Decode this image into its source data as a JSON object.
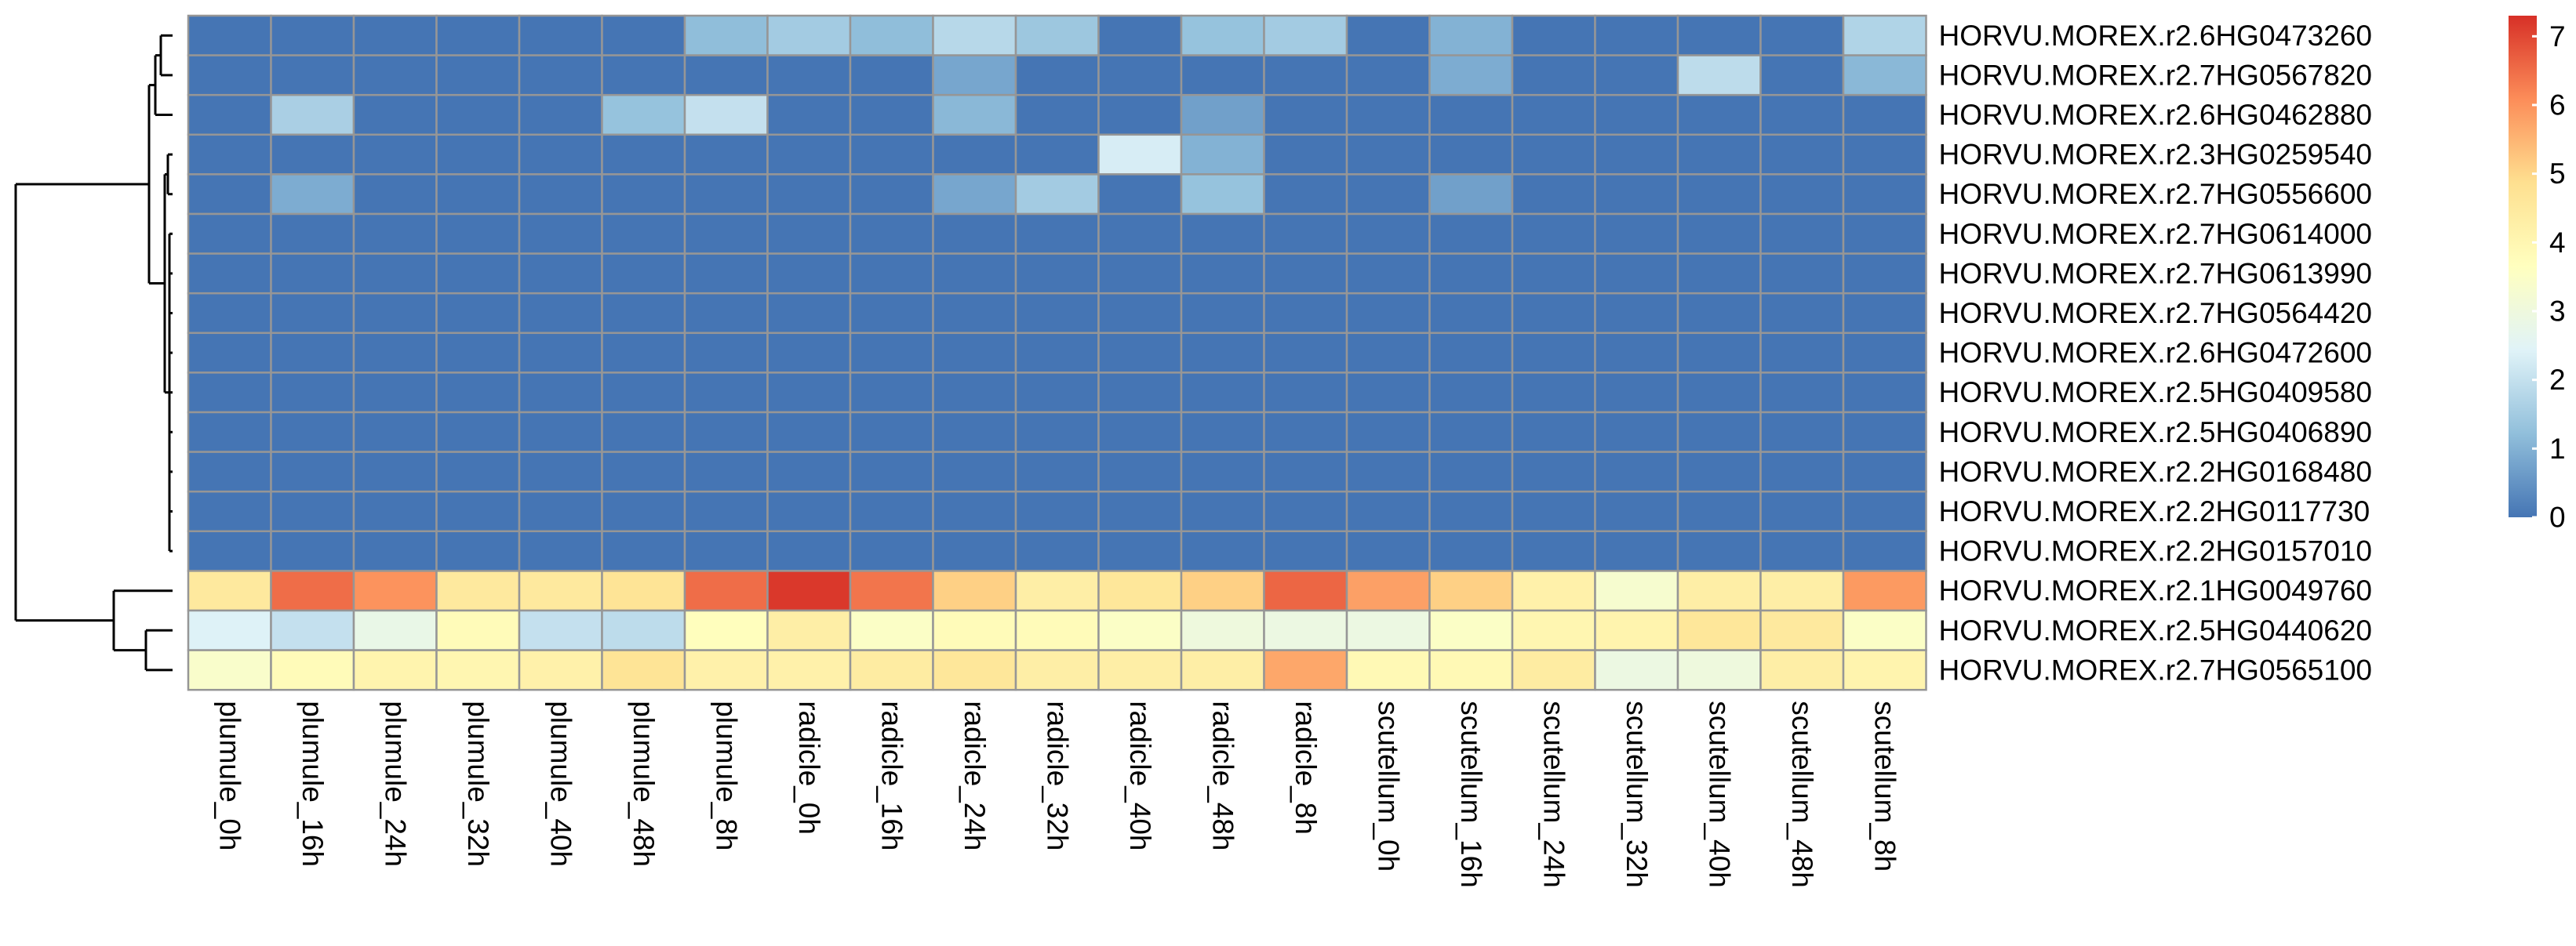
{
  "chart_data": {
    "type": "heatmap",
    "title": "",
    "xlabel": "",
    "ylabel": "",
    "columns": [
      "plumule_0h",
      "plumule_16h",
      "plumule_24h",
      "plumule_32h",
      "plumule_40h",
      "plumule_48h",
      "plumule_8h",
      "radicle_0h",
      "radicle_16h",
      "radicle_24h",
      "radicle_32h",
      "radicle_40h",
      "radicle_48h",
      "radicle_8h",
      "scutellum_0h",
      "scutellum_16h",
      "scutellum_24h",
      "scutellum_32h",
      "scutellum_40h",
      "scutellum_48h",
      "scutellum_8h"
    ],
    "rows": [
      "HORVU.MOREX.r2.6HG0473260",
      "HORVU.MOREX.r2.7HG0567820",
      "HORVU.MOREX.r2.6HG0462880",
      "HORVU.MOREX.r2.3HG0259540",
      "HORVU.MOREX.r2.7HG0556600",
      "HORVU.MOREX.r2.7HG0614000",
      "HORVU.MOREX.r2.7HG0613990",
      "HORVU.MOREX.r2.7HG0564420",
      "HORVU.MOREX.r2.6HG0472600",
      "HORVU.MOREX.r2.5HG0409580",
      "HORVU.MOREX.r2.5HG0406890",
      "HORVU.MOREX.r2.2HG0168480",
      "HORVU.MOREX.r2.2HG0117730",
      "HORVU.MOREX.r2.2HG0157010",
      "HORVU.MOREX.r2.1HG0049760",
      "HORVU.MOREX.r2.5HG0440620",
      "HORVU.MOREX.r2.7HG0565100"
    ],
    "values": [
      [
        0,
        0,
        0,
        0,
        0,
        0,
        1.2,
        1.5,
        1.2,
        1.8,
        1.4,
        0,
        1.3,
        1.5,
        0,
        1.0,
        0,
        0,
        0,
        0,
        1.7
      ],
      [
        0,
        0,
        0,
        0,
        0,
        0,
        0,
        0,
        0,
        0.8,
        0,
        0,
        0,
        0,
        0,
        0.9,
        0,
        0,
        1.9,
        0,
        1.1
      ],
      [
        0,
        1.6,
        0,
        0,
        0,
        1.3,
        2.0,
        0,
        0,
        1.1,
        0,
        0,
        0.7,
        0,
        0,
        0,
        0,
        0,
        0,
        0,
        0
      ],
      [
        0,
        0,
        0,
        0,
        0,
        0,
        0,
        0,
        0,
        0,
        0,
        2.3,
        1.0,
        0,
        0,
        0,
        0,
        0,
        0,
        0,
        0
      ],
      [
        0,
        0.9,
        0,
        0,
        0,
        0,
        0,
        0,
        0,
        0.8,
        1.5,
        0,
        1.3,
        0,
        0,
        0.7,
        0,
        0,
        0,
        0,
        0
      ],
      [
        0,
        0,
        0,
        0,
        0,
        0,
        0,
        0,
        0,
        0,
        0,
        0,
        0,
        0,
        0,
        0,
        0,
        0,
        0,
        0,
        0
      ],
      [
        0,
        0,
        0,
        0,
        0,
        0,
        0,
        0,
        0,
        0,
        0,
        0,
        0,
        0,
        0,
        0,
        0,
        0,
        0,
        0,
        0
      ],
      [
        0,
        0,
        0,
        0,
        0,
        0,
        0,
        0,
        0,
        0,
        0,
        0,
        0,
        0,
        0,
        0,
        0,
        0,
        0,
        0,
        0
      ],
      [
        0,
        0,
        0,
        0,
        0,
        0,
        0,
        0,
        0,
        0,
        0,
        0,
        0,
        0,
        0,
        0,
        0,
        0,
        0,
        0,
        0
      ],
      [
        0,
        0,
        0,
        0,
        0,
        0,
        0,
        0,
        0,
        0,
        0,
        0,
        0,
        0,
        0,
        0,
        0,
        0,
        0,
        0,
        0
      ],
      [
        0,
        0,
        0,
        0,
        0,
        0,
        0,
        0,
        0,
        0,
        0,
        0,
        0,
        0,
        0,
        0,
        0,
        0,
        0,
        0,
        0
      ],
      [
        0,
        0,
        0,
        0,
        0,
        0,
        0,
        0,
        0,
        0,
        0,
        0,
        0,
        0,
        0,
        0,
        0,
        0,
        0,
        0,
        0
      ],
      [
        0,
        0,
        0,
        0,
        0,
        0,
        0,
        0,
        0,
        0,
        0,
        0,
        0,
        0,
        0,
        0,
        0,
        0,
        0,
        0,
        0
      ],
      [
        0,
        0,
        0,
        0,
        0,
        0,
        0,
        0,
        0,
        0,
        0,
        0,
        0,
        0,
        0,
        0,
        0,
        0,
        0,
        0,
        0
      ],
      [
        4.5,
        6.5,
        6.0,
        4.5,
        4.5,
        4.7,
        6.5,
        7.2,
        6.4,
        5.1,
        4.3,
        4.6,
        5.1,
        6.6,
        5.8,
        5.1,
        4.2,
        3.3,
        4.3,
        4.3,
        5.9
      ],
      [
        2.4,
        2.0,
        2.8,
        3.8,
        2.0,
        1.9,
        3.7,
        4.3,
        3.5,
        3.8,
        3.8,
        3.5,
        3.0,
        2.9,
        2.9,
        3.5,
        4.0,
        4.1,
        4.6,
        4.5,
        3.5
      ],
      [
        3.4,
        3.8,
        4.1,
        4.0,
        4.2,
        4.7,
        4.2,
        4.2,
        4.4,
        4.6,
        4.3,
        4.3,
        4.3,
        5.7,
        3.9,
        3.9,
        4.4,
        2.9,
        3.0,
        4.3,
        4.1
      ]
    ],
    "value_range": [
      0,
      7.3
    ],
    "colormap": [
      "#4575B4",
      "#91BFDB",
      "#E0F3F8",
      "#FFFFBF",
      "#FEE090",
      "#FC8D59",
      "#D73027"
    ],
    "legend": {
      "ticks": [
        0,
        1,
        2,
        3,
        4,
        5,
        6,
        7
      ],
      "tick_labels": [
        "0",
        "1",
        "2",
        "3",
        "4",
        "5",
        "6",
        "7"
      ],
      "placement": "right"
    },
    "dendrogram_rows": true,
    "grid": true,
    "cell_border_color": "#969696"
  }
}
